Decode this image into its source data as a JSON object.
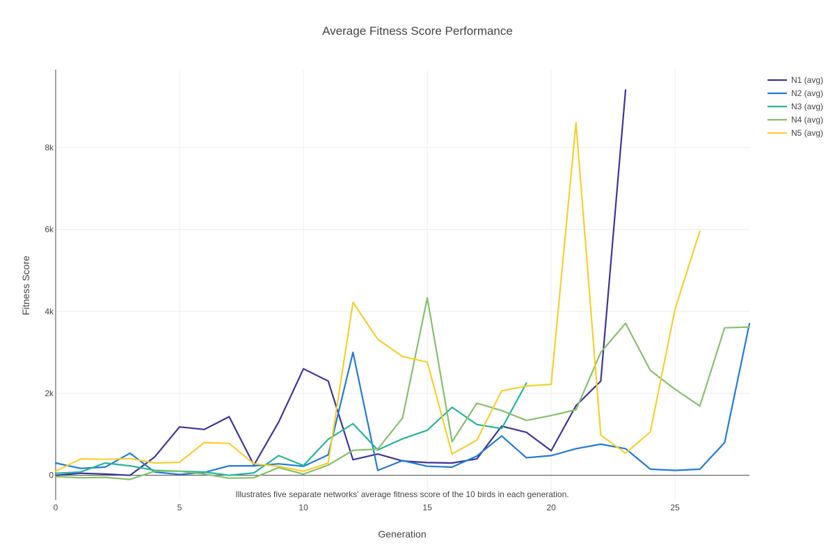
{
  "chart_data": {
    "type": "line",
    "title": "Average Fitness Score Performance",
    "xlabel": "Generation",
    "ylabel": "Fitness Score",
    "annotation": "Illustrates five separate networks' average fitness score of the 10 birds in each generation.",
    "xlim": [
      0,
      28
    ],
    "ylim": [
      -600,
      9900
    ],
    "x_ticks": [
      0,
      5,
      10,
      15,
      20,
      25
    ],
    "y_ticks": [
      0,
      2000,
      4000,
      6000,
      8000
    ],
    "y_tick_labels": [
      "0",
      "2k",
      "4k",
      "6k",
      "8k"
    ],
    "grid": true,
    "legend_position": "top-right",
    "series": [
      {
        "name": "N1 (avg)",
        "color": "#3d3595",
        "x": [
          0,
          1,
          2,
          3,
          4,
          5,
          6,
          7,
          8,
          9,
          10,
          11,
          12,
          13,
          14,
          15,
          16,
          17,
          18,
          19,
          20,
          21,
          22,
          23
        ],
        "y": [
          0,
          50,
          30,
          0,
          450,
          1180,
          1120,
          1430,
          250,
          1300,
          2600,
          2300,
          380,
          520,
          350,
          310,
          300,
          400,
          1200,
          1050,
          600,
          1700,
          2300,
          9400
        ]
      },
      {
        "name": "N2 (avg)",
        "color": "#1f7bd6",
        "x": [
          0,
          1,
          2,
          3,
          4,
          5,
          6,
          7,
          8,
          9,
          10,
          11,
          12,
          13,
          14,
          15,
          16,
          17,
          18,
          19,
          20,
          21,
          22,
          23,
          24,
          25,
          26,
          27,
          28
        ],
        "y": [
          300,
          170,
          200,
          540,
          80,
          20,
          70,
          230,
          230,
          280,
          220,
          500,
          3000,
          120,
          360,
          220,
          200,
          470,
          960,
          430,
          480,
          650,
          760,
          650,
          150,
          120,
          150,
          800,
          3700
        ]
      },
      {
        "name": "N3 (avg)",
        "color": "#25b39a",
        "x": [
          0,
          1,
          2,
          3,
          4,
          5,
          6,
          7,
          8,
          9,
          10,
          11,
          12,
          13,
          14,
          15,
          16,
          17,
          18,
          19
        ],
        "y": [
          50,
          80,
          300,
          230,
          120,
          100,
          80,
          0,
          60,
          480,
          240,
          880,
          1260,
          620,
          890,
          1100,
          1660,
          1240,
          1140,
          2250
        ]
      },
      {
        "name": "N4 (avg)",
        "color": "#85c06a",
        "x": [
          0,
          1,
          2,
          3,
          4,
          5,
          6,
          7,
          8,
          9,
          10,
          11,
          12,
          13,
          14,
          15,
          16,
          17,
          18,
          19,
          20,
          21,
          22,
          23,
          24,
          25,
          26,
          27,
          28
        ],
        "y": [
          -30,
          -60,
          -50,
          -100,
          100,
          100,
          30,
          -70,
          -60,
          190,
          30,
          250,
          610,
          640,
          1400,
          4330,
          820,
          1760,
          1580,
          1340,
          1460,
          1600,
          3000,
          3710,
          2560,
          2100,
          1690,
          3600,
          3620
        ]
      },
      {
        "name": "N5 (avg)",
        "color": "#f6cf2e",
        "x": [
          0,
          1,
          2,
          3,
          4,
          5,
          6,
          7,
          8,
          9,
          10,
          11,
          12,
          13,
          14,
          15,
          16,
          17,
          18,
          19,
          20,
          21,
          22,
          23,
          24,
          25,
          26
        ],
        "y": [
          100,
          400,
          390,
          410,
          300,
          320,
          800,
          780,
          280,
          220,
          100,
          300,
          4220,
          3320,
          2900,
          2760,
          520,
          860,
          2060,
          2180,
          2220,
          8600,
          980,
          540,
          1060,
          4060,
          5960
        ]
      }
    ]
  }
}
